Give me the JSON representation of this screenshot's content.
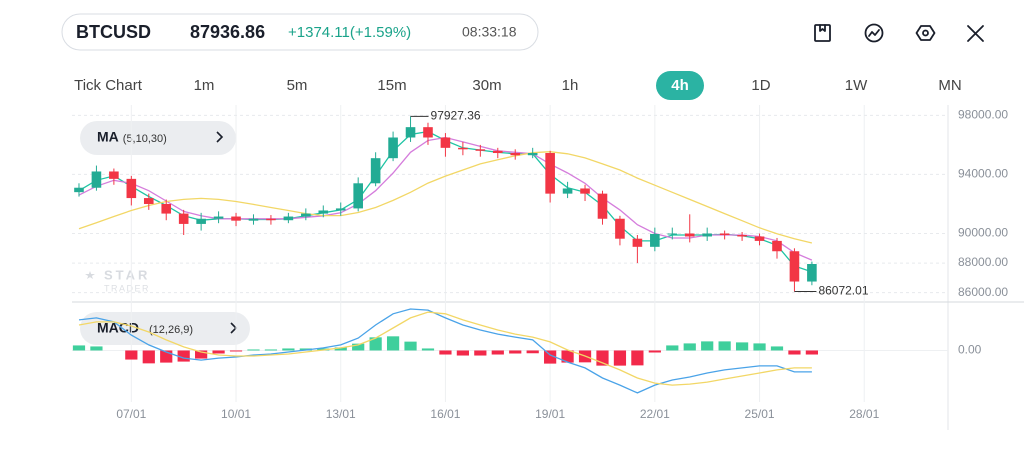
{
  "header": {
    "symbol": "BTCUSD",
    "price": "87936.86",
    "change": "+1374.11(+1.59%)",
    "time": "08:33:18"
  },
  "timeframes": [
    "Tick Chart",
    "1m",
    "5m",
    "15m",
    "30m",
    "1h",
    "4h",
    "1D",
    "1W",
    "MN"
  ],
  "selected_timeframe": "4h",
  "watermark": {
    "line1": "STAR",
    "line2": "TRADER"
  },
  "chart_data": {
    "type": "candlestick",
    "x": [
      5.5,
      6,
      6.5,
      7,
      7.5,
      8,
      8.5,
      9,
      9.5,
      10,
      10.5,
      11,
      11.5,
      12,
      12.5,
      13,
      13.5,
      14,
      14.5,
      15,
      15.5,
      16,
      16.5,
      17,
      17.5,
      18,
      18.5,
      19,
      19.5,
      20,
      20.5,
      21,
      21.5,
      22,
      22.5,
      23,
      23.5,
      24,
      24.5,
      25,
      25.5,
      26,
      26.5
    ],
    "open": [
      92800,
      93100,
      94200,
      93700,
      92400,
      92000,
      91350,
      90650,
      91000,
      91150,
      90870,
      91000,
      90900,
      91150,
      91350,
      91560,
      91700,
      93400,
      95100,
      96500,
      97200,
      96500,
      95800,
      95700,
      95600,
      95450,
      95300,
      95450,
      92700,
      93050,
      92700,
      91000,
      89650,
      89100,
      89970,
      90000,
      89800,
      90000,
      89900,
      89800,
      89500,
      88800,
      86750
    ],
    "high": [
      93400,
      94600,
      94400,
      93900,
      92700,
      92300,
      91600,
      91400,
      91500,
      91400,
      91300,
      91250,
      91400,
      91700,
      91900,
      92100,
      93800,
      95500,
      96900,
      97927.36,
      97500,
      96800,
      96200,
      96000,
      95800,
      95700,
      95800,
      95600,
      93500,
      93300,
      92900,
      91200,
      89900,
      90400,
      90400,
      91300,
      90400,
      90200,
      90100,
      90000,
      89700,
      89000,
      88100
    ],
    "low": [
      92500,
      92900,
      93300,
      91900,
      91600,
      90900,
      89900,
      90200,
      90700,
      90500,
      90600,
      90600,
      90700,
      90900,
      91100,
      91200,
      91500,
      93200,
      94900,
      96200,
      96000,
      95200,
      95300,
      95200,
      95100,
      95000,
      95100,
      92100,
      92400,
      92200,
      90600,
      89200,
      88000,
      88800,
      89600,
      89400,
      89500,
      89600,
      89500,
      89200,
      88300,
      86072.01,
      86500
    ],
    "close": [
      93100,
      94200,
      93700,
      92400,
      92000,
      91350,
      90650,
      91000,
      91150,
      90870,
      91000,
      90900,
      91150,
      91350,
      91560,
      91700,
      93400,
      95100,
      96500,
      97200,
      96500,
      95800,
      95700,
      95600,
      95450,
      95300,
      95450,
      92700,
      93050,
      92700,
      91000,
      89650,
      89100,
      89970,
      90000,
      89800,
      90000,
      89900,
      89800,
      89500,
      88800,
      86750,
      87936.86
    ],
    "up_color": "#22ab94",
    "down_color": "#f23645",
    "xlim": [
      5.3,
      30.4
    ],
    "xticks": [
      {
        "value": 7,
        "label": "07/01"
      },
      {
        "value": 10,
        "label": "10/01"
      },
      {
        "value": 13,
        "label": "13/01"
      },
      {
        "value": 16,
        "label": "16/01"
      },
      {
        "value": 19,
        "label": "19/01"
      },
      {
        "value": 22,
        "label": "22/01"
      },
      {
        "value": 25,
        "label": "25/01"
      },
      {
        "value": 28,
        "label": "28/01"
      }
    ],
    "ylim": [
      85500,
      98700
    ],
    "yticks": [
      {
        "value": 86000,
        "label": "86000.00"
      },
      {
        "value": 88000,
        "label": "88000.00"
      },
      {
        "value": 90000,
        "label": "90000.00"
      },
      {
        "value": 94000,
        "label": "94000.00"
      },
      {
        "value": 98000,
        "label": "98000.00"
      }
    ],
    "grid": true,
    "indicator": {
      "name": "MA",
      "params": "(5,10,30)"
    },
    "ma": [
      {
        "color": "#1ec4a4",
        "values": [
          92900,
          93600,
          93900,
          93200,
          92500,
          91900,
          91200,
          90900,
          91000,
          91000,
          90950,
          90950,
          91000,
          91200,
          91400,
          91600,
          92300,
          93900,
          95600,
          96700,
          96900,
          96300,
          95800,
          95650,
          95500,
          95400,
          95400,
          94000,
          93100,
          92800,
          91900,
          90500,
          89500,
          89500,
          89900,
          89900,
          89900,
          89950,
          89850,
          89650,
          89200,
          87800,
          87400
        ]
      },
      {
        "color": "#d57ddc",
        "values": [
          92600,
          93200,
          93600,
          93400,
          92900,
          92200,
          91500,
          91200,
          91000,
          91000,
          91000,
          91000,
          91000,
          91100,
          91200,
          91400,
          92000,
          92900,
          94100,
          95500,
          96300,
          96500,
          96200,
          95900,
          95600,
          95500,
          95400,
          94700,
          94100,
          93400,
          92400,
          91600,
          90600,
          90000,
          89700,
          89700,
          89900,
          89900,
          89900,
          89800,
          89500,
          88700,
          88200
        ]
      },
      {
        "color": "#f2d766",
        "values": [
          90320,
          90730,
          91150,
          91560,
          91900,
          92170,
          92310,
          92380,
          92310,
          92170,
          91970,
          91760,
          91560,
          91350,
          91210,
          91210,
          91420,
          91760,
          92240,
          92790,
          93410,
          93890,
          94300,
          94710,
          94990,
          95260,
          95470,
          95540,
          95400,
          95120,
          94710,
          94300,
          93750,
          93270,
          92790,
          92310,
          91830,
          91350,
          90870,
          90390,
          89980,
          89640,
          89360
        ]
      }
    ],
    "macd": {
      "indicator": {
        "name": "MACD",
        "params": "(12,26,9)"
      },
      "ylim": [
        -2000,
        1800
      ],
      "yticks": [
        {
          "value": 0,
          "label": "0.00"
        }
      ],
      "macd_line": {
        "color": "#4aa3e8",
        "values": [
          1210,
          1290,
          1130,
          610,
          220,
          -60,
          -300,
          -380,
          -300,
          -260,
          -180,
          -140,
          -60,
          20,
          100,
          220,
          490,
          1010,
          1450,
          1640,
          1600,
          1290,
          1010,
          810,
          650,
          530,
          420,
          -180,
          -460,
          -690,
          -1090,
          -1370,
          -1680,
          -1370,
          -1170,
          -1050,
          -890,
          -770,
          -690,
          -610,
          -610,
          -850,
          -850
        ]
      },
      "signal_line": {
        "color": "#f2d766",
        "values": [
          1010,
          1130,
          1130,
          970,
          730,
          420,
          140,
          -60,
          -180,
          -220,
          -220,
          -180,
          -140,
          -60,
          20,
          100,
          220,
          490,
          890,
          1290,
          1520,
          1450,
          1210,
          1010,
          810,
          650,
          530,
          340,
          20,
          -220,
          -490,
          -770,
          -1090,
          -1290,
          -1370,
          -1330,
          -1250,
          -1130,
          -1010,
          -890,
          -770,
          -690,
          -690
        ]
      },
      "histogram": {
        "up_color": "#3fcf9c",
        "down_color": "#f2294a",
        "values": [
          200,
          160,
          0,
          -360,
          -510,
          -480,
          -440,
          -320,
          -120,
          -40,
          40,
          40,
          80,
          80,
          80,
          120,
          270,
          520,
          560,
          350,
          80,
          -160,
          -200,
          -200,
          -160,
          -120,
          -110,
          -520,
          -480,
          -470,
          -600,
          -600,
          -590,
          -80,
          200,
          280,
          360,
          360,
          320,
          280,
          160,
          -160,
          -160
        ]
      }
    }
  }
}
